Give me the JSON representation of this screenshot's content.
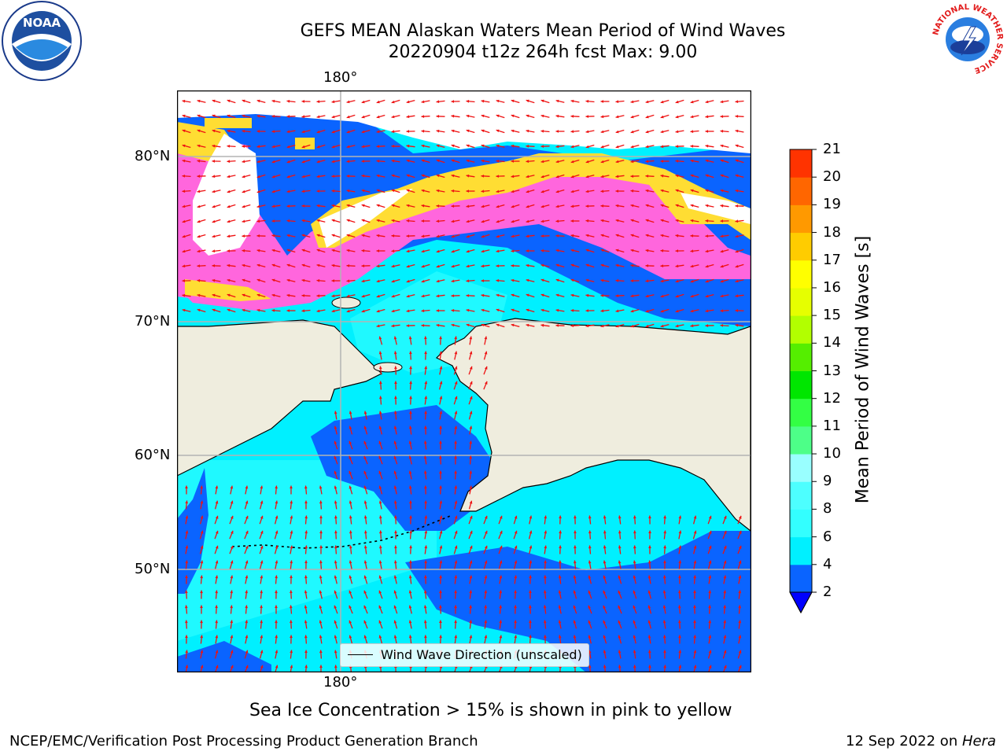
{
  "title_line1": "GEFS MEAN Alaskan Waters Mean Period of Wind Waves",
  "title_line2": "20220904 t12z 264h fcst   Max: 9.00",
  "axes": {
    "top_lon_label": "180°",
    "bottom_lon_label": "180°",
    "lat_labels": [
      "80°N",
      "70°N",
      "60°N",
      "50°N"
    ]
  },
  "legend": {
    "label": "Wind Wave Direction (unscaled)"
  },
  "colorbar": {
    "label": "Mean Period of Wind Waves [s]",
    "ticks": [
      "2",
      "4",
      "6",
      "8",
      "9",
      "10",
      "11",
      "12",
      "13",
      "14",
      "15",
      "16",
      "17",
      "18",
      "19",
      "20",
      "21"
    ],
    "colors": [
      "#0a64ff",
      "#00f0ff",
      "#33ffff",
      "#4dffff",
      "#99ffff",
      "#4dff88",
      "#33ff44",
      "#00e600",
      "#55ee00",
      "#b2ff00",
      "#e6ff00",
      "#ffff00",
      "#ffcc00",
      "#ff9900",
      "#ff6600",
      "#ff3300",
      "#ff0000"
    ],
    "under_color": "#0000ff"
  },
  "caption": "Sea Ice Concentration > 15% is shown in pink to yellow",
  "footer_left": "NCEP/EMC/Verification Post Processing Product Generation Branch",
  "footer_right_date": "12 Sep 2022 on ",
  "footer_right_host": "Hera",
  "logos": {
    "noaa_text": "NOAA",
    "nws_ring_text": "NATIONAL WEATHER SERVICE"
  },
  "map_colors": {
    "land": "#efedde",
    "ocean_6s": "#00f0ff",
    "ocean_4s": "#33ffff",
    "ocean_2s": "#0a64ff",
    "ice_pink": "#ff66dd",
    "ice_yellow": "#ffdd33",
    "arrow": "#ee1111"
  }
}
